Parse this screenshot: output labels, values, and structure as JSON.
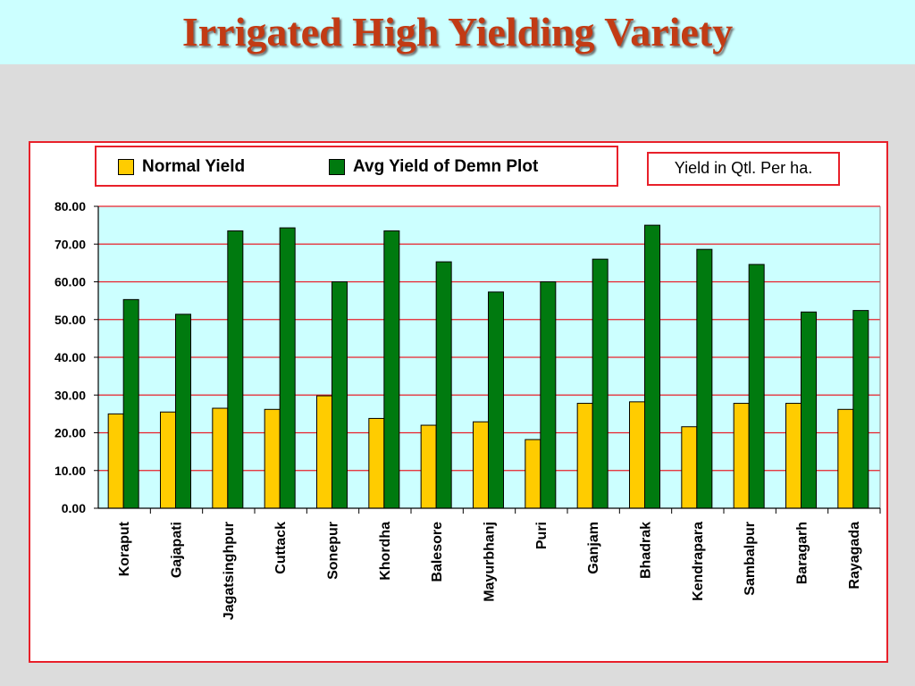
{
  "title": "Irrigated High Yielding Variety",
  "unit_note": "Yield in Qtl. Per ha.",
  "colors": {
    "normal": "#ffcc00",
    "demo": "#007a0f",
    "plot_bg": "#ccffff",
    "grid": "#e8202a",
    "frame": "#e8202a",
    "title": "#c23b14"
  },
  "chart_data": {
    "type": "bar",
    "title": "",
    "xlabel": "",
    "ylabel": "",
    "ylim": [
      0,
      80
    ],
    "yticks": [
      "0.00",
      "10.00",
      "20.00",
      "30.00",
      "40.00",
      "50.00",
      "60.00",
      "70.00",
      "80.00"
    ],
    "grid": true,
    "legend_position": "top",
    "categories": [
      "Koraput",
      "Gajapati",
      "Jagatsinghpur",
      "Cuttack",
      "Sonepur",
      "Khordha",
      "Balesore",
      "Mayurbhanj",
      "Puri",
      "Ganjam",
      "Bhadrak",
      "Kendrapara",
      "Sambalpur",
      "Baragarh",
      "Rayagada"
    ],
    "series": [
      {
        "name": "Normal Yield",
        "values": [
          25.0,
          25.5,
          26.5,
          26.2,
          29.8,
          23.8,
          22.0,
          22.9,
          18.2,
          27.8,
          28.2,
          21.6,
          27.8,
          27.8,
          26.2
        ]
      },
      {
        "name": "Avg Yield of Demn Plot",
        "values": [
          55.3,
          51.4,
          73.5,
          74.3,
          60.0,
          73.5,
          65.3,
          57.3,
          60.0,
          66.0,
          75.0,
          68.6,
          64.6,
          52.0,
          52.4
        ]
      }
    ]
  }
}
